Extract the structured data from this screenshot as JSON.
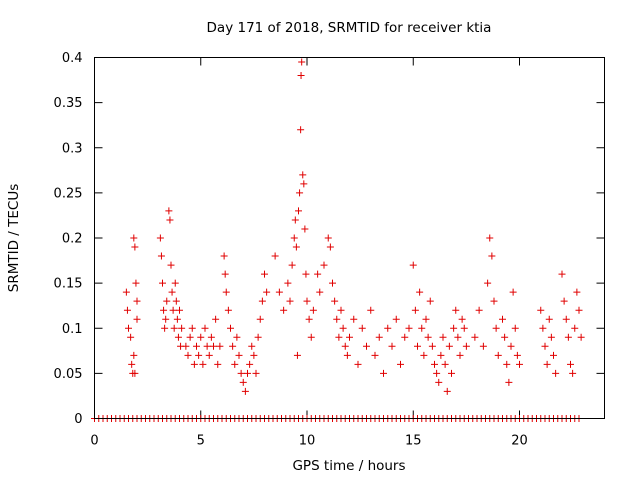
{
  "chart_data": {
    "type": "scatter",
    "title": "Day 171 of 2018, SRMTID for receiver ktia",
    "xlabel": "GPS time / hours",
    "ylabel": "SRMTID / TECUs",
    "xlim": [
      0,
      24
    ],
    "ylim": [
      0,
      0.4
    ],
    "x_ticks": [
      0,
      5,
      10,
      15,
      20
    ],
    "x_tick_labels": [
      "0",
      "5",
      "10",
      "15",
      "20"
    ],
    "y_ticks": [
      0,
      0.05,
      0.1,
      0.15,
      0.2,
      0.25,
      0.3,
      0.35,
      0.4
    ],
    "y_tick_labels": [
      "0",
      "0.05",
      "0.1",
      "0.15",
      "0.2",
      "0.25",
      "0.3",
      "0.35",
      "0.4"
    ],
    "grid": false,
    "marker": "+",
    "color": "#e00000",
    "series": [
      {
        "name": "SRMTID",
        "points": [
          [
            1.5,
            0.14
          ],
          [
            1.55,
            0.12
          ],
          [
            1.6,
            0.1
          ],
          [
            1.7,
            0.09
          ],
          [
            1.75,
            0.06
          ],
          [
            1.8,
            0.05
          ],
          [
            1.85,
            0.2
          ],
          [
            1.9,
            0.19
          ],
          [
            1.95,
            0.15
          ],
          [
            2.0,
            0.13
          ],
          [
            1.85,
            0.07
          ],
          [
            1.9,
            0.05
          ],
          [
            2.0,
            0.11
          ],
          [
            3.1,
            0.2
          ],
          [
            3.15,
            0.18
          ],
          [
            3.2,
            0.15
          ],
          [
            3.25,
            0.12
          ],
          [
            3.3,
            0.1
          ],
          [
            3.35,
            0.11
          ],
          [
            3.4,
            0.13
          ],
          [
            3.5,
            0.23
          ],
          [
            3.55,
            0.22
          ],
          [
            3.6,
            0.17
          ],
          [
            3.65,
            0.14
          ],
          [
            3.7,
            0.12
          ],
          [
            3.75,
            0.1
          ],
          [
            3.8,
            0.15
          ],
          [
            3.85,
            0.13
          ],
          [
            3.9,
            0.11
          ],
          [
            3.95,
            0.09
          ],
          [
            4.0,
            0.12
          ],
          [
            4.05,
            0.08
          ],
          [
            4.1,
            0.1
          ],
          [
            4.3,
            0.08
          ],
          [
            4.4,
            0.07
          ],
          [
            4.5,
            0.09
          ],
          [
            4.6,
            0.1
          ],
          [
            4.7,
            0.06
          ],
          [
            4.8,
            0.08
          ],
          [
            4.9,
            0.07
          ],
          [
            5.0,
            0.09
          ],
          [
            5.1,
            0.06
          ],
          [
            5.2,
            0.1
          ],
          [
            5.3,
            0.08
          ],
          [
            5.4,
            0.07
          ],
          [
            5.5,
            0.09
          ],
          [
            5.6,
            0.08
          ],
          [
            5.7,
            0.11
          ],
          [
            5.8,
            0.06
          ],
          [
            5.9,
            0.08
          ],
          [
            6.1,
            0.18
          ],
          [
            6.15,
            0.16
          ],
          [
            6.2,
            0.14
          ],
          [
            6.3,
            0.12
          ],
          [
            6.4,
            0.1
          ],
          [
            6.5,
            0.08
          ],
          [
            6.6,
            0.06
          ],
          [
            6.7,
            0.09
          ],
          [
            6.8,
            0.07
          ],
          [
            6.9,
            0.05
          ],
          [
            7.0,
            0.04
          ],
          [
            7.1,
            0.03
          ],
          [
            7.2,
            0.05
          ],
          [
            7.3,
            0.06
          ],
          [
            7.4,
            0.08
          ],
          [
            7.5,
            0.07
          ],
          [
            7.6,
            0.05
          ],
          [
            7.7,
            0.09
          ],
          [
            7.8,
            0.11
          ],
          [
            7.9,
            0.13
          ],
          [
            8.0,
            0.16
          ],
          [
            8.1,
            0.14
          ],
          [
            8.5,
            0.18
          ],
          [
            8.7,
            0.14
          ],
          [
            8.9,
            0.12
          ],
          [
            9.1,
            0.15
          ],
          [
            9.2,
            0.13
          ],
          [
            9.3,
            0.17
          ],
          [
            9.4,
            0.2
          ],
          [
            9.45,
            0.22
          ],
          [
            9.5,
            0.19
          ],
          [
            9.55,
            0.07
          ],
          [
            9.6,
            0.23
          ],
          [
            9.65,
            0.25
          ],
          [
            9.7,
            0.32
          ],
          [
            9.72,
            0.38
          ],
          [
            9.75,
            0.395
          ],
          [
            9.8,
            0.27
          ],
          [
            9.85,
            0.26
          ],
          [
            9.9,
            0.21
          ],
          [
            9.95,
            0.16
          ],
          [
            10.0,
            0.13
          ],
          [
            10.1,
            0.11
          ],
          [
            10.2,
            0.09
          ],
          [
            10.3,
            0.12
          ],
          [
            10.5,
            0.16
          ],
          [
            10.6,
            0.14
          ],
          [
            10.8,
            0.17
          ],
          [
            11.0,
            0.2
          ],
          [
            11.1,
            0.19
          ],
          [
            11.2,
            0.15
          ],
          [
            11.3,
            0.13
          ],
          [
            11.4,
            0.11
          ],
          [
            11.5,
            0.09
          ],
          [
            11.6,
            0.12
          ],
          [
            11.7,
            0.1
          ],
          [
            11.8,
            0.08
          ],
          [
            11.9,
            0.07
          ],
          [
            12.0,
            0.09
          ],
          [
            12.2,
            0.11
          ],
          [
            12.4,
            0.06
          ],
          [
            12.6,
            0.1
          ],
          [
            12.8,
            0.08
          ],
          [
            13.0,
            0.12
          ],
          [
            13.2,
            0.07
          ],
          [
            13.4,
            0.09
          ],
          [
            13.6,
            0.05
          ],
          [
            13.8,
            0.1
          ],
          [
            14.0,
            0.08
          ],
          [
            14.2,
            0.11
          ],
          [
            14.4,
            0.06
          ],
          [
            14.6,
            0.09
          ],
          [
            14.8,
            0.1
          ],
          [
            15.0,
            0.17
          ],
          [
            15.1,
            0.12
          ],
          [
            15.2,
            0.08
          ],
          [
            15.3,
            0.14
          ],
          [
            15.4,
            0.1
          ],
          [
            15.5,
            0.07
          ],
          [
            15.6,
            0.11
          ],
          [
            15.7,
            0.09
          ],
          [
            15.8,
            0.13
          ],
          [
            15.9,
            0.08
          ],
          [
            16.0,
            0.06
          ],
          [
            16.1,
            0.05
          ],
          [
            16.2,
            0.04
          ],
          [
            16.3,
            0.07
          ],
          [
            16.4,
            0.09
          ],
          [
            16.5,
            0.06
          ],
          [
            16.6,
            0.03
          ],
          [
            16.7,
            0.08
          ],
          [
            16.8,
            0.05
          ],
          [
            16.9,
            0.1
          ],
          [
            17.0,
            0.12
          ],
          [
            17.1,
            0.09
          ],
          [
            17.2,
            0.07
          ],
          [
            17.3,
            0.11
          ],
          [
            17.4,
            0.1
          ],
          [
            17.5,
            0.08
          ],
          [
            17.9,
            0.09
          ],
          [
            18.1,
            0.12
          ],
          [
            18.3,
            0.08
          ],
          [
            18.5,
            0.15
          ],
          [
            18.6,
            0.2
          ],
          [
            18.7,
            0.18
          ],
          [
            18.8,
            0.13
          ],
          [
            18.9,
            0.1
          ],
          [
            19.0,
            0.07
          ],
          [
            19.2,
            0.11
          ],
          [
            19.3,
            0.09
          ],
          [
            19.4,
            0.06
          ],
          [
            19.5,
            0.04
          ],
          [
            19.6,
            0.08
          ],
          [
            19.7,
            0.14
          ],
          [
            19.8,
            0.1
          ],
          [
            19.9,
            0.07
          ],
          [
            20.0,
            0.06
          ],
          [
            21.0,
            0.12
          ],
          [
            21.1,
            0.1
          ],
          [
            21.2,
            0.08
          ],
          [
            21.3,
            0.06
          ],
          [
            21.4,
            0.11
          ],
          [
            21.5,
            0.09
          ],
          [
            21.6,
            0.07
          ],
          [
            21.7,
            0.05
          ],
          [
            22.0,
            0.16
          ],
          [
            22.1,
            0.13
          ],
          [
            22.2,
            0.11
          ],
          [
            22.3,
            0.09
          ],
          [
            22.4,
            0.06
          ],
          [
            22.5,
            0.05
          ],
          [
            22.6,
            0.1
          ],
          [
            22.7,
            0.14
          ],
          [
            22.8,
            0.12
          ],
          [
            22.9,
            0.09
          ]
        ],
        "zero_points_x": [
          0.0,
          0.2,
          0.4,
          0.6,
          0.8,
          1.0,
          1.2,
          1.4,
          1.6,
          1.8,
          2.0,
          2.2,
          2.4,
          2.6,
          2.8,
          3.0,
          3.2,
          3.4,
          3.6,
          3.8,
          4.0,
          4.2,
          4.4,
          4.6,
          4.8,
          5.0,
          5.2,
          5.4,
          5.6,
          5.8,
          6.0,
          6.2,
          6.4,
          6.6,
          6.8,
          7.0,
          7.2,
          7.4,
          7.6,
          7.8,
          8.0,
          8.2,
          8.4,
          8.6,
          8.8,
          9.0,
          9.2,
          9.4,
          9.6,
          9.8,
          10.0,
          10.2,
          10.4,
          10.6,
          10.8,
          11.0,
          11.2,
          11.4,
          11.6,
          11.8,
          12.0,
          12.2,
          12.4,
          12.6,
          12.8,
          13.0,
          13.2,
          13.4,
          13.6,
          13.8,
          14.0,
          14.2,
          14.4,
          14.6,
          14.8,
          15.0,
          15.2,
          15.4,
          15.6,
          15.8,
          16.0,
          16.2,
          16.4,
          16.6,
          16.8,
          17.0,
          17.2,
          17.4,
          17.6,
          17.8,
          18.0,
          18.2,
          18.4,
          18.6,
          18.8,
          19.0,
          19.2,
          19.4,
          19.6,
          19.8,
          20.0,
          20.2,
          20.4,
          20.6,
          20.8,
          21.0,
          21.2,
          21.4,
          21.6,
          21.8,
          22.0,
          22.2,
          22.4,
          22.6,
          22.8
        ]
      }
    ]
  }
}
